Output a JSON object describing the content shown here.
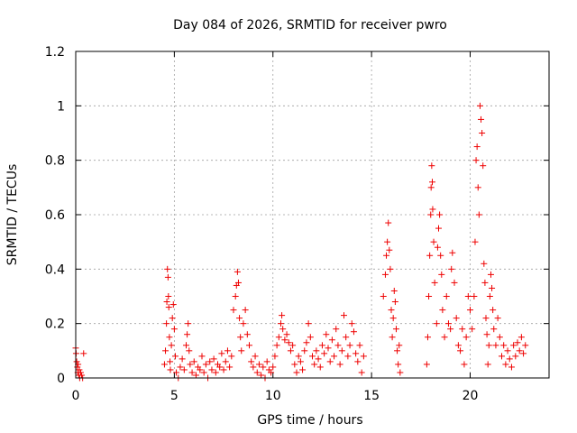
{
  "chart_data": {
    "type": "scatter",
    "title": "Day 084 of 2026, SRMTID for receiver pwro",
    "xlabel": "GPS time / hours",
    "ylabel": "SRMTID / TECUs",
    "xlim": [
      0,
      24
    ],
    "ylim": [
      0,
      1.2
    ],
    "xticks": [
      0,
      5,
      10,
      15,
      20
    ],
    "yticks": [
      0,
      0.2,
      0.4,
      0.6,
      0.8,
      1,
      1.2
    ],
    "xtick_labels": [
      "0",
      "5",
      "10",
      "15",
      "20"
    ],
    "ytick_labels": [
      "0",
      "0.2",
      "0.4",
      "0.6",
      "0.8",
      "1",
      "1.2"
    ],
    "grid": true,
    "marker": "+",
    "color": "#ee0000",
    "series": [
      {
        "name": "SRMTID",
        "points": [
          [
            0.0,
            0.11
          ],
          [
            0.02,
            0.09
          ],
          [
            0.05,
            0.06
          ],
          [
            0.08,
            0.04
          ],
          [
            0.1,
            0.02
          ],
          [
            0.12,
            0.05
          ],
          [
            0.15,
            0.01
          ],
          [
            0.18,
            0.03
          ],
          [
            0.2,
            0.0
          ],
          [
            0.25,
            0.02
          ],
          [
            0.3,
            0.01
          ],
          [
            0.35,
            0.0
          ],
          [
            0.4,
            0.09
          ],
          [
            4.5,
            0.05
          ],
          [
            4.55,
            0.1
          ],
          [
            4.6,
            0.2
          ],
          [
            4.62,
            0.28
          ],
          [
            4.65,
            0.4
          ],
          [
            4.68,
            0.37
          ],
          [
            4.7,
            0.3
          ],
          [
            4.72,
            0.26
          ],
          [
            4.75,
            0.15
          ],
          [
            4.78,
            0.06
          ],
          [
            4.8,
            0.03
          ],
          [
            4.85,
            0.12
          ],
          [
            4.9,
            0.22
          ],
          [
            4.95,
            0.27
          ],
          [
            5.0,
            0.18
          ],
          [
            5.05,
            0.08
          ],
          [
            5.1,
            0.02
          ],
          [
            5.2,
            0.0
          ],
          [
            5.3,
            0.04
          ],
          [
            5.4,
            0.07
          ],
          [
            5.5,
            0.03
          ],
          [
            5.6,
            0.12
          ],
          [
            5.65,
            0.16
          ],
          [
            5.7,
            0.2
          ],
          [
            5.75,
            0.1
          ],
          [
            5.8,
            0.05
          ],
          [
            5.9,
            0.02
          ],
          [
            6.0,
            0.06
          ],
          [
            6.1,
            0.01
          ],
          [
            6.2,
            0.04
          ],
          [
            6.3,
            0.03
          ],
          [
            6.4,
            0.08
          ],
          [
            6.5,
            0.02
          ],
          [
            6.6,
            0.05
          ],
          [
            6.7,
            0.0
          ],
          [
            6.8,
            0.06
          ],
          [
            6.9,
            0.03
          ],
          [
            7.0,
            0.07
          ],
          [
            7.1,
            0.02
          ],
          [
            7.2,
            0.05
          ],
          [
            7.3,
            0.04
          ],
          [
            7.4,
            0.09
          ],
          [
            7.5,
            0.03
          ],
          [
            7.6,
            0.06
          ],
          [
            7.7,
            0.1
          ],
          [
            7.8,
            0.04
          ],
          [
            7.9,
            0.08
          ],
          [
            8.0,
            0.25
          ],
          [
            8.1,
            0.3
          ],
          [
            8.15,
            0.34
          ],
          [
            8.2,
            0.39
          ],
          [
            8.25,
            0.35
          ],
          [
            8.3,
            0.22
          ],
          [
            8.35,
            0.15
          ],
          [
            8.4,
            0.1
          ],
          [
            8.5,
            0.2
          ],
          [
            8.6,
            0.25
          ],
          [
            8.7,
            0.16
          ],
          [
            8.8,
            0.12
          ],
          [
            8.9,
            0.06
          ],
          [
            9.0,
            0.04
          ],
          [
            9.1,
            0.08
          ],
          [
            9.2,
            0.02
          ],
          [
            9.3,
            0.05
          ],
          [
            9.4,
            0.01
          ],
          [
            9.5,
            0.04
          ],
          [
            9.6,
            0.0
          ],
          [
            9.7,
            0.06
          ],
          [
            9.8,
            0.03
          ],
          [
            9.9,
            0.02
          ],
          [
            10.0,
            0.04
          ],
          [
            10.1,
            0.08
          ],
          [
            10.2,
            0.12
          ],
          [
            10.3,
            0.15
          ],
          [
            10.4,
            0.2
          ],
          [
            10.45,
            0.23
          ],
          [
            10.5,
            0.18
          ],
          [
            10.6,
            0.14
          ],
          [
            10.7,
            0.16
          ],
          [
            10.8,
            0.13
          ],
          [
            10.9,
            0.1
          ],
          [
            11.0,
            0.12
          ],
          [
            11.1,
            0.05
          ],
          [
            11.2,
            0.02
          ],
          [
            11.3,
            0.08
          ],
          [
            11.4,
            0.06
          ],
          [
            11.5,
            0.03
          ],
          [
            11.6,
            0.1
          ],
          [
            11.7,
            0.13
          ],
          [
            11.8,
            0.2
          ],
          [
            11.9,
            0.15
          ],
          [
            12.0,
            0.08
          ],
          [
            12.1,
            0.05
          ],
          [
            12.2,
            0.1
          ],
          [
            12.3,
            0.07
          ],
          [
            12.4,
            0.04
          ],
          [
            12.5,
            0.12
          ],
          [
            12.6,
            0.09
          ],
          [
            12.7,
            0.16
          ],
          [
            12.8,
            0.11
          ],
          [
            12.9,
            0.06
          ],
          [
            13.0,
            0.14
          ],
          [
            13.1,
            0.08
          ],
          [
            13.2,
            0.18
          ],
          [
            13.3,
            0.12
          ],
          [
            13.4,
            0.05
          ],
          [
            13.5,
            0.1
          ],
          [
            13.6,
            0.23
          ],
          [
            13.7,
            0.15
          ],
          [
            13.8,
            0.08
          ],
          [
            13.9,
            0.12
          ],
          [
            14.0,
            0.2
          ],
          [
            14.1,
            0.17
          ],
          [
            14.2,
            0.09
          ],
          [
            14.3,
            0.06
          ],
          [
            14.4,
            0.12
          ],
          [
            14.5,
            0.02
          ],
          [
            14.6,
            0.08
          ],
          [
            15.6,
            0.3
          ],
          [
            15.7,
            0.38
          ],
          [
            15.75,
            0.45
          ],
          [
            15.8,
            0.5
          ],
          [
            15.85,
            0.57
          ],
          [
            15.9,
            0.47
          ],
          [
            15.95,
            0.4
          ],
          [
            16.0,
            0.25
          ],
          [
            16.05,
            0.15
          ],
          [
            16.1,
            0.22
          ],
          [
            16.15,
            0.32
          ],
          [
            16.2,
            0.28
          ],
          [
            16.25,
            0.18
          ],
          [
            16.3,
            0.1
          ],
          [
            16.35,
            0.05
          ],
          [
            16.4,
            0.12
          ],
          [
            16.45,
            0.02
          ],
          [
            17.8,
            0.05
          ],
          [
            17.85,
            0.15
          ],
          [
            17.9,
            0.3
          ],
          [
            17.95,
            0.45
          ],
          [
            18.0,
            0.6
          ],
          [
            18.02,
            0.7
          ],
          [
            18.05,
            0.78
          ],
          [
            18.08,
            0.72
          ],
          [
            18.1,
            0.62
          ],
          [
            18.15,
            0.5
          ],
          [
            18.2,
            0.35
          ],
          [
            18.3,
            0.2
          ],
          [
            18.35,
            0.48
          ],
          [
            18.4,
            0.55
          ],
          [
            18.45,
            0.6
          ],
          [
            18.5,
            0.45
          ],
          [
            18.55,
            0.38
          ],
          [
            18.6,
            0.25
          ],
          [
            18.7,
            0.15
          ],
          [
            18.8,
            0.3
          ],
          [
            18.9,
            0.2
          ],
          [
            19.0,
            0.18
          ],
          [
            19.05,
            0.4
          ],
          [
            19.1,
            0.46
          ],
          [
            19.2,
            0.35
          ],
          [
            19.3,
            0.22
          ],
          [
            19.4,
            0.12
          ],
          [
            19.5,
            0.1
          ],
          [
            19.6,
            0.18
          ],
          [
            19.7,
            0.05
          ],
          [
            19.8,
            0.15
          ],
          [
            19.9,
            0.3
          ],
          [
            20.0,
            0.25
          ],
          [
            20.1,
            0.18
          ],
          [
            20.2,
            0.3
          ],
          [
            20.25,
            0.5
          ],
          [
            20.3,
            0.8
          ],
          [
            20.35,
            0.85
          ],
          [
            20.4,
            0.7
          ],
          [
            20.45,
            0.6
          ],
          [
            20.5,
            1.0
          ],
          [
            20.55,
            0.95
          ],
          [
            20.6,
            0.9
          ],
          [
            20.65,
            0.78
          ],
          [
            20.7,
            0.42
          ],
          [
            20.75,
            0.35
          ],
          [
            20.8,
            0.22
          ],
          [
            20.85,
            0.16
          ],
          [
            20.9,
            0.05
          ],
          [
            20.95,
            0.12
          ],
          [
            21.0,
            0.3
          ],
          [
            21.05,
            0.38
          ],
          [
            21.1,
            0.33
          ],
          [
            21.15,
            0.25
          ],
          [
            21.2,
            0.18
          ],
          [
            21.3,
            0.12
          ],
          [
            21.4,
            0.22
          ],
          [
            21.5,
            0.15
          ],
          [
            21.6,
            0.08
          ],
          [
            21.7,
            0.12
          ],
          [
            21.8,
            0.05
          ],
          [
            21.9,
            0.1
          ],
          [
            22.0,
            0.07
          ],
          [
            22.1,
            0.04
          ],
          [
            22.2,
            0.12
          ],
          [
            22.3,
            0.08
          ],
          [
            22.4,
            0.13
          ],
          [
            22.5,
            0.1
          ],
          [
            22.6,
            0.15
          ],
          [
            22.7,
            0.09
          ],
          [
            22.8,
            0.12
          ]
        ]
      }
    ]
  }
}
